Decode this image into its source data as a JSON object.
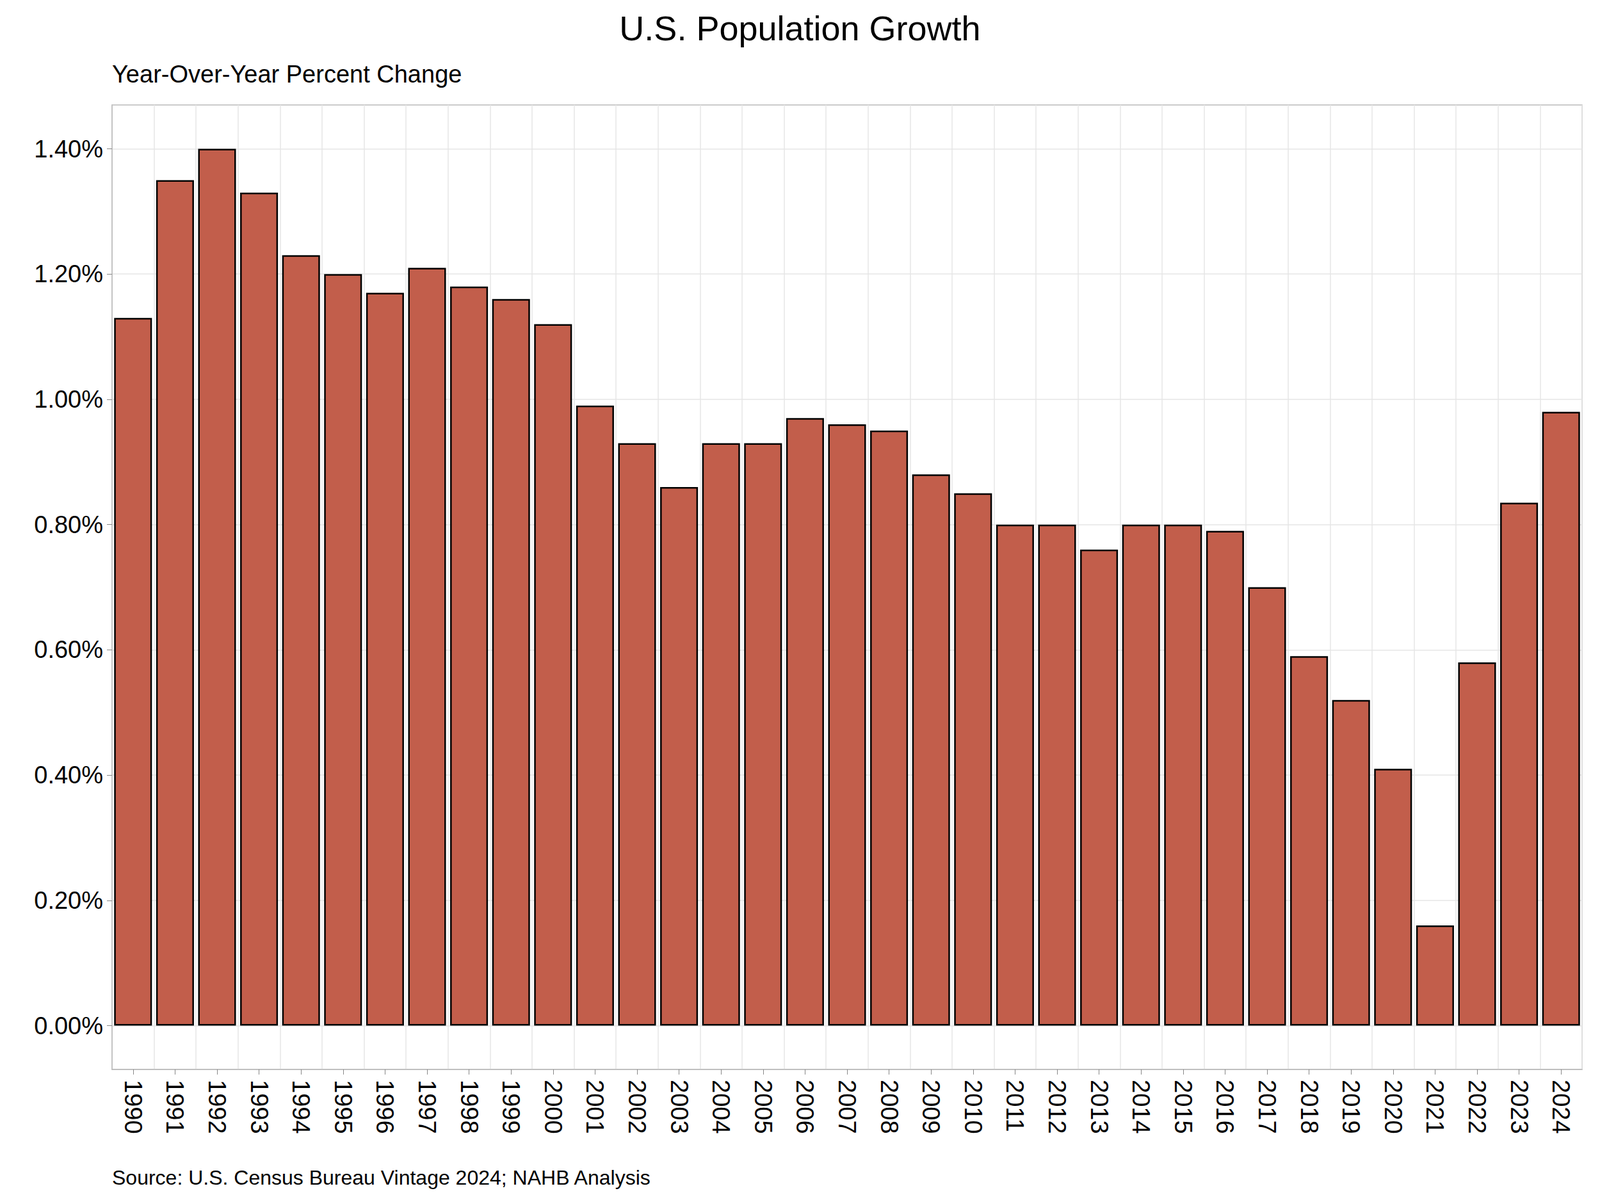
{
  "chart_data": {
    "type": "bar",
    "title": "U.S. Population Growth",
    "subtitle": "Year-Over-Year Percent Change",
    "source": "Source: U.S. Census Bureau Vintage 2024; NAHB Analysis",
    "categories": [
      "1990",
      "1991",
      "1992",
      "1993",
      "1994",
      "1995",
      "1996",
      "1997",
      "1998",
      "1999",
      "2000",
      "2001",
      "2002",
      "2003",
      "2004",
      "2005",
      "2006",
      "2007",
      "2008",
      "2009",
      "2010",
      "2011",
      "2012",
      "2013",
      "2014",
      "2015",
      "2016",
      "2017",
      "2018",
      "2019",
      "2020",
      "2021",
      "2022",
      "2023",
      "2024"
    ],
    "values": [
      1.13,
      1.35,
      1.4,
      1.33,
      1.23,
      1.2,
      1.17,
      1.21,
      1.18,
      1.16,
      1.12,
      0.99,
      0.93,
      0.86,
      0.93,
      0.93,
      0.97,
      0.96,
      0.95,
      0.88,
      0.85,
      0.8,
      0.8,
      0.76,
      0.8,
      0.8,
      0.79,
      0.7,
      0.59,
      0.52,
      0.41,
      0.16,
      0.58,
      0.835,
      0.98
    ],
    "color": "#c25e4b",
    "ylim": [
      -0.07,
      1.47
    ],
    "yticks": [
      {
        "value": 0,
        "label": "0.00%"
      },
      {
        "value": 0.2,
        "label": "0.20%"
      },
      {
        "value": 0.4,
        "label": "0.40%"
      },
      {
        "value": 0.6,
        "label": "0.60%"
      },
      {
        "value": 0.8,
        "label": "0.80%"
      },
      {
        "value": 1.0,
        "label": "1.00%"
      },
      {
        "value": 1.2,
        "label": "1.20%"
      },
      {
        "value": 1.4,
        "label": "1.40%"
      }
    ],
    "grid": true
  }
}
